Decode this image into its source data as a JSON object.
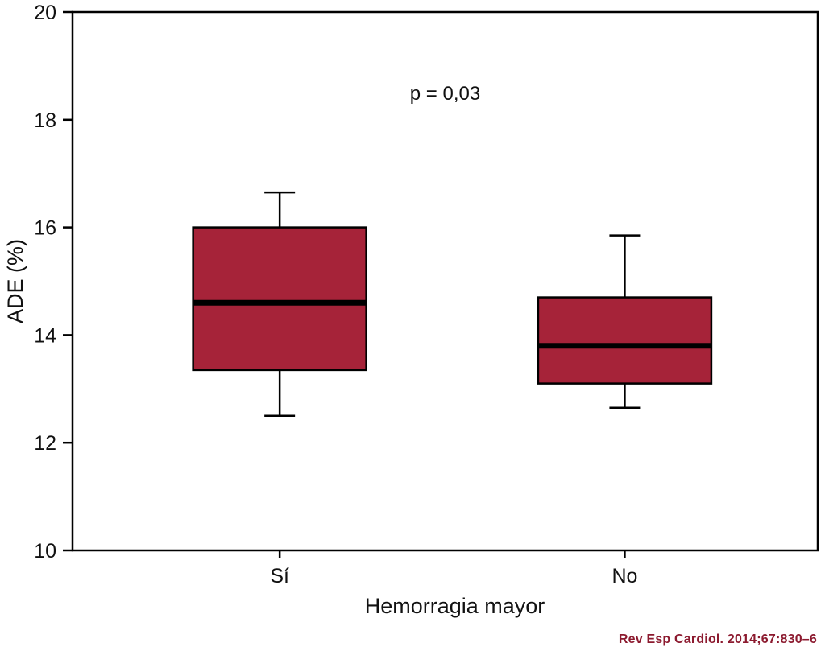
{
  "chart_data": {
    "type": "boxplot",
    "title": "",
    "xlabel": "Hemorragia mayor",
    "ylabel": "ADE (%)",
    "ylim": [
      10,
      20
    ],
    "yticks": [
      10,
      12,
      14,
      16,
      18,
      20
    ],
    "categories": [
      "Sí",
      "No"
    ],
    "series": [
      {
        "name": "Sí",
        "whisker_low": 12.5,
        "q1": 13.35,
        "median": 14.6,
        "q3": 16.0,
        "whisker_high": 16.65
      },
      {
        "name": "No",
        "whisker_low": 12.65,
        "q1": 13.1,
        "median": 13.8,
        "q3": 14.7,
        "whisker_high": 15.85
      }
    ],
    "annotation": "p = 0,03",
    "box_fill": "#A62339",
    "box_stroke": "#000000",
    "median_color": "#000000",
    "frame_color": "#000000",
    "legend": "none",
    "grid": false
  },
  "footer": {
    "citation": "Rev Esp Cardiol. 2014;67:830–6",
    "citation_color": "#8C1A2F"
  }
}
